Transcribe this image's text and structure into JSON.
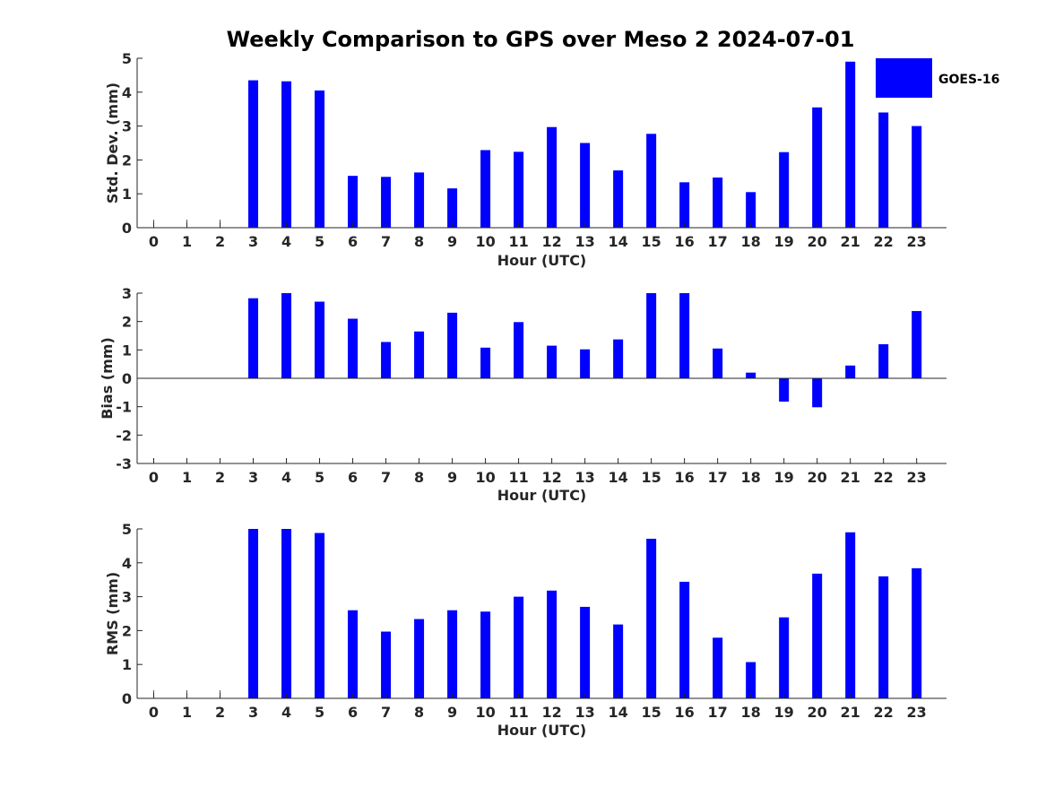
{
  "title": "Weekly Comparison to GPS over Meso 2 2024-07-01",
  "legend": {
    "label": "GOES-16",
    "color": "#0000ff"
  },
  "chart_data": [
    {
      "type": "bar",
      "xlabel": "Hour (UTC)",
      "ylabel": "Std. Dev. (mm)",
      "ylim": [
        0,
        5
      ],
      "yticks": [
        0,
        1,
        2,
        3,
        4,
        5
      ],
      "categories": [
        "0",
        "1",
        "2",
        "3",
        "4",
        "5",
        "6",
        "7",
        "8",
        "9",
        "10",
        "11",
        "12",
        "13",
        "14",
        "15",
        "16",
        "17",
        "18",
        "19",
        "20",
        "21",
        "22",
        "23"
      ],
      "series": [
        {
          "name": "GOES-16",
          "values": [
            0,
            0,
            0,
            4.35,
            4.32,
            4.05,
            1.53,
            1.5,
            1.63,
            1.16,
            2.29,
            2.24,
            2.97,
            2.5,
            1.69,
            2.77,
            1.34,
            1.48,
            1.05,
            2.23,
            3.55,
            4.9,
            3.4,
            3.0
          ]
        }
      ],
      "zero_markers": [
        0,
        1,
        2
      ]
    },
    {
      "type": "bar",
      "xlabel": "Hour (UTC)",
      "ylabel": "Bias (mm)",
      "ylim": [
        -3,
        3
      ],
      "yticks": [
        -3,
        -2,
        -1,
        0,
        1,
        2,
        3
      ],
      "categories": [
        "0",
        "1",
        "2",
        "3",
        "4",
        "5",
        "6",
        "7",
        "8",
        "9",
        "10",
        "11",
        "12",
        "13",
        "14",
        "15",
        "16",
        "17",
        "18",
        "19",
        "20",
        "21",
        "22",
        "23"
      ],
      "series": [
        {
          "name": "GOES-16",
          "values": [
            0,
            0,
            0,
            2.82,
            3.0,
            2.7,
            2.1,
            1.28,
            1.65,
            2.31,
            1.08,
            1.98,
            1.15,
            1.02,
            1.37,
            3.0,
            3.0,
            1.05,
            0.2,
            -0.82,
            -1.02,
            0.45,
            1.2,
            2.37
          ]
        }
      ],
      "zero_markers": []
    },
    {
      "type": "bar",
      "xlabel": "Hour (UTC)",
      "ylabel": "RMS (mm)",
      "ylim": [
        0,
        5
      ],
      "yticks": [
        0,
        1,
        2,
        3,
        4,
        5
      ],
      "categories": [
        "0",
        "1",
        "2",
        "3",
        "4",
        "5",
        "6",
        "7",
        "8",
        "9",
        "10",
        "11",
        "12",
        "13",
        "14",
        "15",
        "16",
        "17",
        "18",
        "19",
        "20",
        "21",
        "22",
        "23"
      ],
      "series": [
        {
          "name": "GOES-16",
          "values": [
            0,
            0,
            0,
            5.0,
            5.0,
            4.88,
            2.6,
            1.97,
            2.34,
            2.6,
            2.56,
            3.0,
            3.18,
            2.7,
            2.18,
            4.71,
            3.44,
            1.79,
            1.07,
            2.39,
            3.68,
            4.9,
            3.6,
            3.84
          ]
        }
      ],
      "zero_markers": [
        0,
        1,
        2
      ]
    }
  ]
}
